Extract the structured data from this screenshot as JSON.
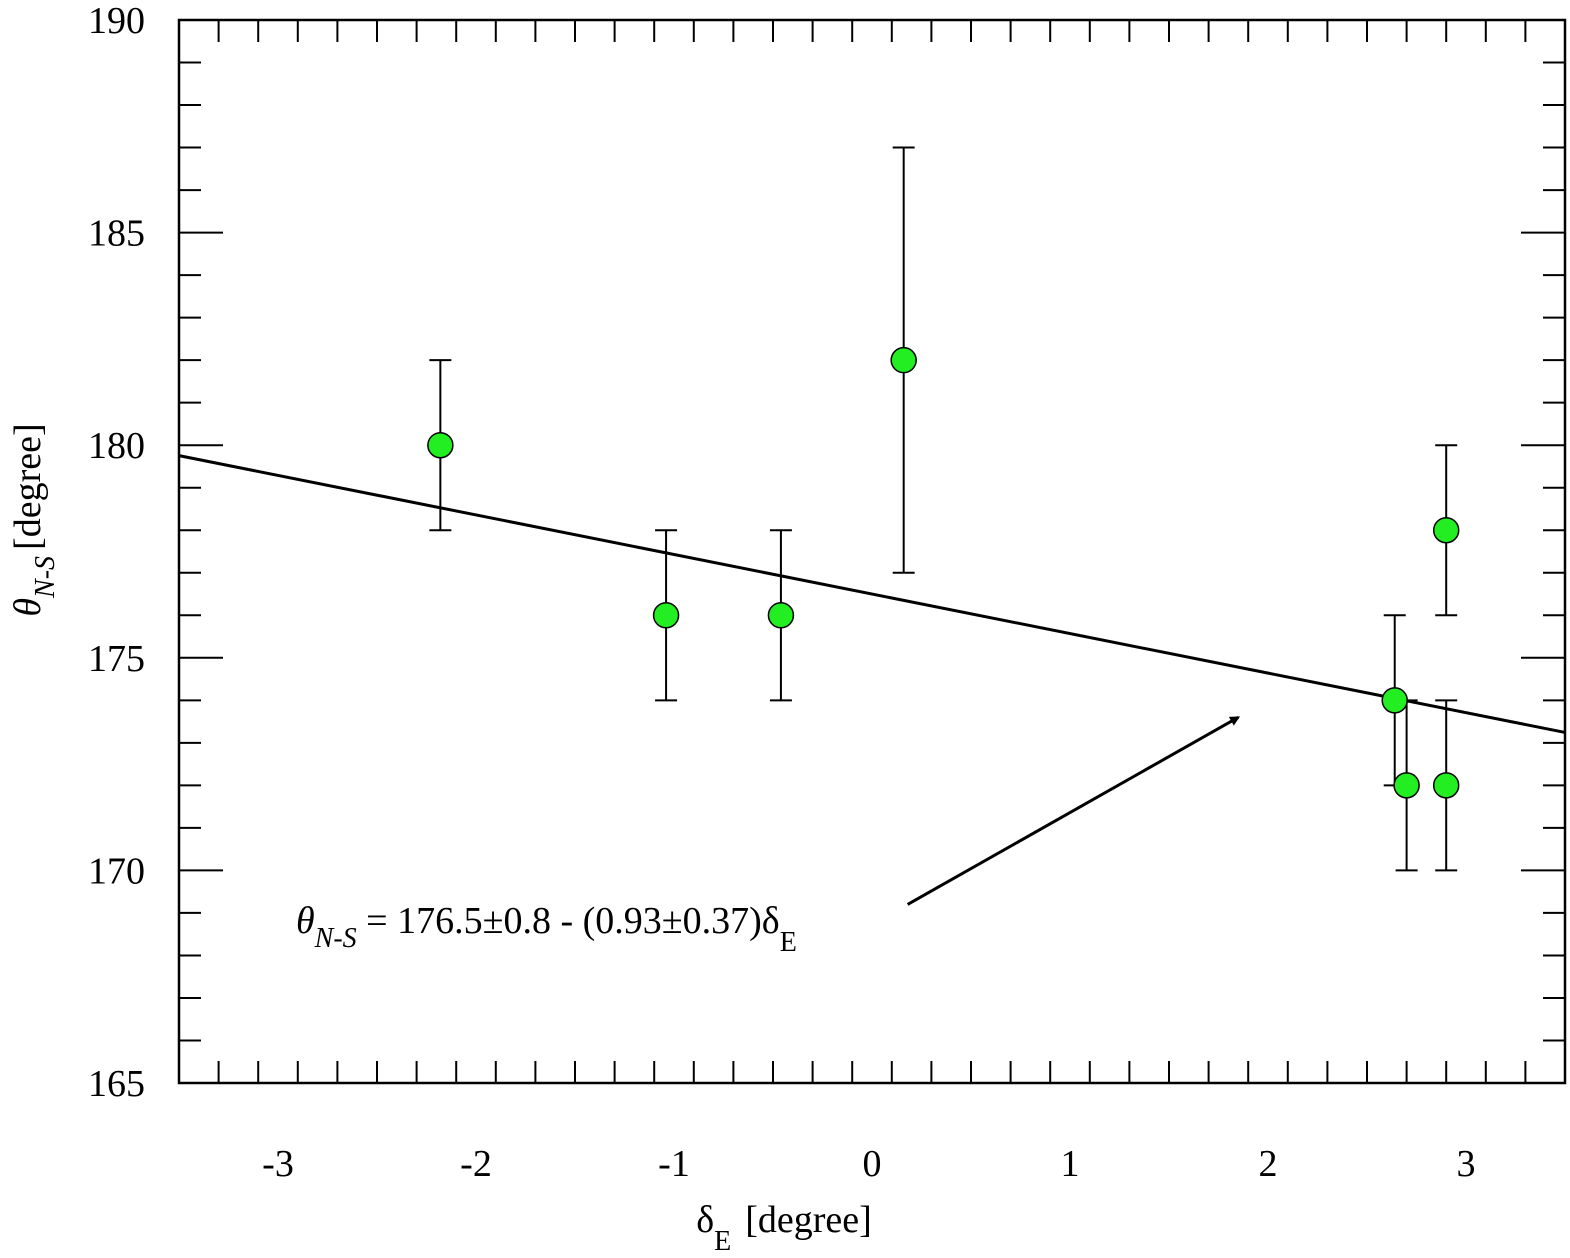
{
  "chart_data": {
    "type": "scatter",
    "xlabel_symbol": "δ",
    "xlabel_sub": "E",
    "xlabel_unit": "[degree]",
    "ylabel_symbol": "θ",
    "ylabel_sub": "N-S",
    "ylabel_unit": "[degree]",
    "xlim": [
      -3.5,
      3.5
    ],
    "ylim": [
      165,
      190
    ],
    "x_ticks": [
      -3,
      -2,
      -1,
      0,
      1,
      2,
      3
    ],
    "x_minor_step": 0.2,
    "y_ticks": [
      165,
      170,
      175,
      180,
      185,
      190
    ],
    "y_minor_step": 1,
    "grid": false,
    "marker_color": "#22ee22",
    "points": [
      {
        "x": -2.18,
        "y": 180,
        "err_low": 2,
        "err_high": 2
      },
      {
        "x": -1.04,
        "y": 176,
        "err_low": 2,
        "err_high": 2
      },
      {
        "x": -0.46,
        "y": 176,
        "err_low": 2,
        "err_high": 2
      },
      {
        "x": 0.16,
        "y": 182,
        "err_low": 5,
        "err_high": 5
      },
      {
        "x": 2.64,
        "y": 174,
        "err_low": 2,
        "err_high": 2
      },
      {
        "x": 2.7,
        "y": 172,
        "err_low": 2,
        "err_high": 2
      },
      {
        "x": 2.9,
        "y": 178,
        "err_low": 2,
        "err_high": 2
      },
      {
        "x": 2.9,
        "y": 172,
        "err_low": 2,
        "err_high": 2
      }
    ],
    "fit_line": {
      "intercept": 176.5,
      "slope": -0.93
    },
    "annotation": {
      "symbol": "θ",
      "sub": "N-S",
      "body": " = 176.5±0.8 - (0.93±0.37)δ",
      "tail_sub": "E",
      "arrow_from": [
        0.18,
        169.2
      ],
      "arrow_to": [
        1.85,
        173.6
      ]
    }
  }
}
